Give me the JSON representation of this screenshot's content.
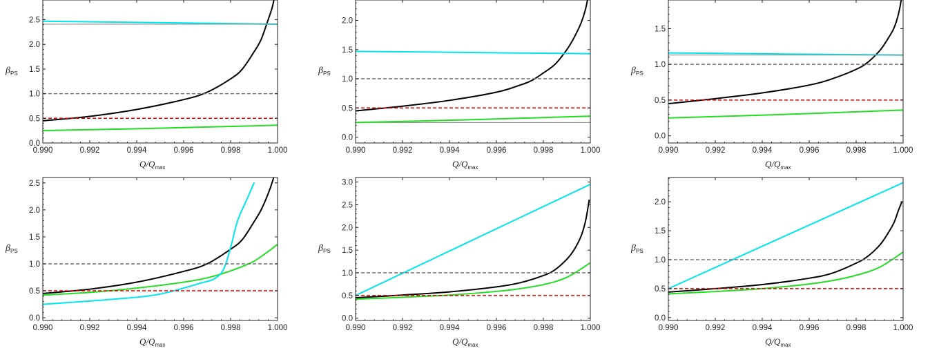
{
  "colors": {
    "black_curve": "#000000",
    "cyan_curve": "#00e5ee",
    "green_curve": "#22dd22",
    "gray_dashed": "#707070",
    "red_dashed": "#dd0000",
    "gray_thin": "#888888"
  },
  "chart_data": [
    {
      "type": "line",
      "xlabel": "Q/Q",
      "xlabel_sub": "max",
      "ylabel": "β",
      "ylabel_sub": "PS",
      "xlim": [
        0.99,
        1.0
      ],
      "ylim": [
        0,
        2.9
      ],
      "xticks": [
        "0.990",
        "0.992",
        "0.994",
        "0.996",
        "0.998",
        "1.000"
      ],
      "yticks": [
        [
          "0.0",
          0
        ],
        [
          "0.5",
          0.5
        ],
        [
          "1.0",
          1.0
        ],
        [
          "1.5",
          1.5
        ],
        [
          "2.0",
          2.0
        ],
        [
          "2.5",
          2.5
        ]
      ],
      "series": [
        {
          "color": "black_curve",
          "style": "solid",
          "width": 2,
          "x": [
            0.99,
            0.992,
            0.994,
            0.996,
            0.997,
            0.998,
            0.9985,
            0.999,
            0.9993,
            0.9996,
            0.9998,
            0.99995
          ],
          "y": [
            0.45,
            0.54,
            0.68,
            0.88,
            1.03,
            1.3,
            1.5,
            1.85,
            2.1,
            2.5,
            2.8,
            3.2
          ]
        },
        {
          "color": "cyan_curve",
          "style": "solid",
          "width": 2,
          "x": [
            0.99,
            1.0
          ],
          "y": [
            2.47,
            2.41
          ]
        },
        {
          "color": "gray_thin",
          "style": "solid",
          "width": 1,
          "x": [
            0.99,
            1.0
          ],
          "y": [
            2.41,
            2.41
          ]
        },
        {
          "color": "green_curve",
          "style": "solid",
          "width": 2,
          "x": [
            0.99,
            0.995,
            1.0
          ],
          "y": [
            0.25,
            0.3,
            0.36
          ]
        },
        {
          "color": "gray_dashed",
          "style": "dashed",
          "width": 1.5,
          "x": [
            0.99,
            1.0
          ],
          "y": [
            1.0,
            1.0
          ]
        },
        {
          "color": "red_dashed",
          "style": "dashed",
          "width": 1.5,
          "x": [
            0.99,
            1.0
          ],
          "y": [
            0.5,
            0.5
          ]
        }
      ]
    },
    {
      "type": "line",
      "xlabel": "Q/Q",
      "xlabel_sub": "max",
      "ylabel": "β",
      "ylabel_sub": "PS",
      "xlim": [
        0.99,
        1.0
      ],
      "ylim": [
        -0.1,
        2.35
      ],
      "xticks": [
        "0.990",
        "0.992",
        "0.994",
        "0.996",
        "0.998",
        "1.000"
      ],
      "yticks": [
        [
          "0.0",
          0
        ],
        [
          "0.5",
          0.5
        ],
        [
          "1.0",
          1.0
        ],
        [
          "1.5",
          1.5
        ],
        [
          "2.0",
          2.0
        ]
      ],
      "series": [
        {
          "color": "black_curve",
          "style": "solid",
          "width": 2,
          "x": [
            0.99,
            0.992,
            0.994,
            0.996,
            0.997,
            0.9975,
            0.998,
            0.9985,
            0.999,
            0.9993,
            0.9996,
            0.9998,
            0.99995
          ],
          "y": [
            0.45,
            0.53,
            0.63,
            0.77,
            0.89,
            0.97,
            1.1,
            1.25,
            1.5,
            1.7,
            1.95,
            2.2,
            2.5
          ]
        },
        {
          "color": "cyan_curve",
          "style": "solid",
          "width": 2,
          "x": [
            0.99,
            1.0
          ],
          "y": [
            1.47,
            1.43
          ]
        },
        {
          "color": "gray_thin",
          "style": "solid",
          "width": 1,
          "x": [
            0.99,
            1.0
          ],
          "y": [
            0.25,
            0.25
          ]
        },
        {
          "color": "green_curve",
          "style": "solid",
          "width": 2,
          "x": [
            0.99,
            0.995,
            1.0
          ],
          "y": [
            0.25,
            0.3,
            0.36
          ]
        },
        {
          "color": "gray_dashed",
          "style": "dashed",
          "width": 1.5,
          "x": [
            0.99,
            1.0
          ],
          "y": [
            1.0,
            1.0
          ]
        },
        {
          "color": "red_dashed",
          "style": "dashed",
          "width": 1.5,
          "x": [
            0.99,
            1.0
          ],
          "y": [
            0.5,
            0.5
          ]
        }
      ]
    },
    {
      "type": "line",
      "xlabel": "Q/Q",
      "xlabel_sub": "max",
      "ylabel": "β",
      "ylabel_sub": "PS",
      "xlim": [
        0.99,
        1.0
      ],
      "ylim": [
        -0.1,
        1.9
      ],
      "xticks": [
        "0.990",
        "0.992",
        "0.994",
        "0.996",
        "0.998",
        "1.000"
      ],
      "yticks": [
        [
          "0.0",
          0
        ],
        [
          "0.5",
          0.5
        ],
        [
          "1.0",
          1.0
        ],
        [
          "1.5",
          1.5
        ]
      ],
      "series": [
        {
          "color": "black_curve",
          "style": "solid",
          "width": 2,
          "x": [
            0.99,
            0.992,
            0.994,
            0.996,
            0.997,
            0.998,
            0.9985,
            0.999,
            0.9993,
            0.9996,
            0.9998,
            0.99995
          ],
          "y": [
            0.45,
            0.52,
            0.6,
            0.71,
            0.8,
            0.93,
            1.03,
            1.19,
            1.33,
            1.5,
            1.7,
            1.95
          ]
        },
        {
          "color": "cyan_curve",
          "style": "solid",
          "width": 2,
          "x": [
            0.99,
            1.0
          ],
          "y": [
            1.16,
            1.13
          ]
        },
        {
          "color": "gray_thin",
          "style": "solid",
          "width": 1,
          "x": [
            0.99,
            1.0
          ],
          "y": [
            1.13,
            1.13
          ]
        },
        {
          "color": "green_curve",
          "style": "solid",
          "width": 2,
          "x": [
            0.99,
            0.995,
            1.0
          ],
          "y": [
            0.25,
            0.3,
            0.36
          ]
        },
        {
          "color": "gray_dashed",
          "style": "dashed",
          "width": 1.5,
          "x": [
            0.99,
            1.0
          ],
          "y": [
            1.0,
            1.0
          ]
        },
        {
          "color": "red_dashed",
          "style": "dashed",
          "width": 1.5,
          "x": [
            0.99,
            1.0
          ],
          "y": [
            0.5,
            0.5
          ]
        }
      ]
    },
    {
      "type": "line",
      "xlabel": "Q/Q",
      "xlabel_sub": "max",
      "ylabel": "β",
      "ylabel_sub": "PS",
      "xlim": [
        0.99,
        1.0
      ],
      "ylim": [
        -0.05,
        2.6
      ],
      "xticks": [
        "0.990",
        "0.992",
        "0.994",
        "0.996",
        "0.998",
        "1.000"
      ],
      "yticks": [
        [
          "0.0",
          0
        ],
        [
          "0.5",
          0.5
        ],
        [
          "1.0",
          1.0
        ],
        [
          "1.5",
          1.5
        ],
        [
          "2.0",
          2.0
        ],
        [
          "2.5",
          2.5
        ]
      ],
      "series": [
        {
          "color": "black_curve",
          "style": "solid",
          "width": 2,
          "x": [
            0.99,
            0.992,
            0.994,
            0.996,
            0.997,
            0.998,
            0.9985,
            0.999,
            0.9993,
            0.9996,
            0.9998,
            0.99995
          ],
          "y": [
            0.45,
            0.53,
            0.66,
            0.86,
            1.0,
            1.27,
            1.45,
            1.78,
            2.0,
            2.3,
            2.55,
            2.8
          ]
        },
        {
          "color": "green_curve",
          "style": "solid",
          "width": 2,
          "x": [
            0.99,
            0.992,
            0.994,
            0.996,
            0.997,
            0.998,
            0.999,
            1.0
          ],
          "y": [
            0.42,
            0.47,
            0.55,
            0.66,
            0.74,
            0.87,
            1.05,
            1.36
          ]
        },
        {
          "color": "cyan_curve",
          "style": "solid",
          "width": 2,
          "x": [
            0.99,
            0.992,
            0.994,
            0.995,
            0.996,
            0.9967,
            0.9973,
            0.9977,
            0.998,
            0.9983,
            0.9987,
            0.999
          ],
          "y": [
            0.25,
            0.31,
            0.38,
            0.44,
            0.55,
            0.64,
            0.72,
            0.9,
            1.3,
            1.8,
            2.2,
            2.5
          ]
        },
        {
          "color": "gray_dashed",
          "style": "dashed",
          "width": 1.5,
          "x": [
            0.99,
            1.0
          ],
          "y": [
            1.0,
            1.0
          ]
        },
        {
          "color": "red_dashed",
          "style": "dashed",
          "width": 1.5,
          "x": [
            0.99,
            1.0
          ],
          "y": [
            0.5,
            0.5
          ]
        }
      ]
    },
    {
      "type": "line",
      "xlabel": "Q/Q",
      "xlabel_sub": "max",
      "ylabel": "β",
      "ylabel_sub": "PS",
      "xlim": [
        0.99,
        1.0
      ],
      "ylim": [
        -0.05,
        3.1
      ],
      "xticks": [
        "0.990",
        "0.992",
        "0.994",
        "0.996",
        "0.998",
        "1.000"
      ],
      "yticks": [
        [
          "0.0",
          0
        ],
        [
          "0.5",
          0.5
        ],
        [
          "1.0",
          1.0
        ],
        [
          "1.5",
          1.5
        ],
        [
          "2.0",
          2.0
        ],
        [
          "2.5",
          2.5
        ],
        [
          "3.0",
          3.0
        ]
      ],
      "series": [
        {
          "color": "cyan_curve",
          "style": "solid",
          "width": 2,
          "x": [
            0.99,
            1.0
          ],
          "y": [
            0.5,
            2.95
          ]
        },
        {
          "color": "black_curve",
          "style": "solid",
          "width": 2,
          "x": [
            0.99,
            0.992,
            0.994,
            0.996,
            0.997,
            0.998,
            0.9985,
            0.999,
            0.9993,
            0.9996,
            0.9998,
            0.99995
          ],
          "y": [
            0.45,
            0.51,
            0.58,
            0.69,
            0.78,
            0.94,
            1.07,
            1.3,
            1.5,
            1.8,
            2.15,
            2.6
          ]
        },
        {
          "color": "green_curve",
          "style": "solid",
          "width": 2,
          "x": [
            0.99,
            0.992,
            0.994,
            0.996,
            0.997,
            0.998,
            0.999,
            1.0
          ],
          "y": [
            0.42,
            0.46,
            0.51,
            0.59,
            0.65,
            0.74,
            0.9,
            1.22
          ]
        },
        {
          "color": "gray_dashed",
          "style": "dashed",
          "width": 1.5,
          "x": [
            0.99,
            1.0
          ],
          "y": [
            1.0,
            1.0
          ]
        },
        {
          "color": "red_dashed",
          "style": "dashed",
          "width": 1.5,
          "x": [
            0.99,
            1.0
          ],
          "y": [
            0.5,
            0.5
          ]
        }
      ]
    },
    {
      "type": "line",
      "xlabel": "Q/Q",
      "xlabel_sub": "max",
      "ylabel": "β",
      "ylabel_sub": "PS",
      "xlim": [
        0.99,
        1.0
      ],
      "ylim": [
        -0.05,
        2.42
      ],
      "xticks": [
        "0.990",
        "0.992",
        "0.994",
        "0.996",
        "0.998",
        "1.000"
      ],
      "yticks": [
        [
          "0.0",
          0
        ],
        [
          "0.5",
          0.5
        ],
        [
          "1.0",
          1.0
        ],
        [
          "1.5",
          1.5
        ],
        [
          "2.0",
          2.0
        ]
      ],
      "series": [
        {
          "color": "cyan_curve",
          "style": "solid",
          "width": 2,
          "x": [
            0.99,
            1.0
          ],
          "y": [
            0.5,
            2.33
          ]
        },
        {
          "color": "black_curve",
          "style": "solid",
          "width": 2,
          "x": [
            0.99,
            0.992,
            0.994,
            0.996,
            0.997,
            0.998,
            0.9985,
            0.999,
            0.9993,
            0.9996,
            0.9998,
            0.99995
          ],
          "y": [
            0.44,
            0.5,
            0.57,
            0.68,
            0.77,
            0.94,
            1.06,
            1.25,
            1.42,
            1.63,
            1.85,
            2.0
          ]
        },
        {
          "color": "green_curve",
          "style": "solid",
          "width": 2,
          "x": [
            0.99,
            0.992,
            0.994,
            0.996,
            0.997,
            0.998,
            0.999,
            1.0
          ],
          "y": [
            0.41,
            0.45,
            0.5,
            0.58,
            0.64,
            0.73,
            0.87,
            1.13
          ]
        },
        {
          "color": "gray_dashed",
          "style": "dashed",
          "width": 1.5,
          "x": [
            0.99,
            1.0
          ],
          "y": [
            1.0,
            1.0
          ]
        },
        {
          "color": "red_dashed",
          "style": "dashed",
          "width": 1.5,
          "x": [
            0.99,
            1.0
          ],
          "y": [
            0.5,
            0.5
          ]
        }
      ]
    }
  ]
}
